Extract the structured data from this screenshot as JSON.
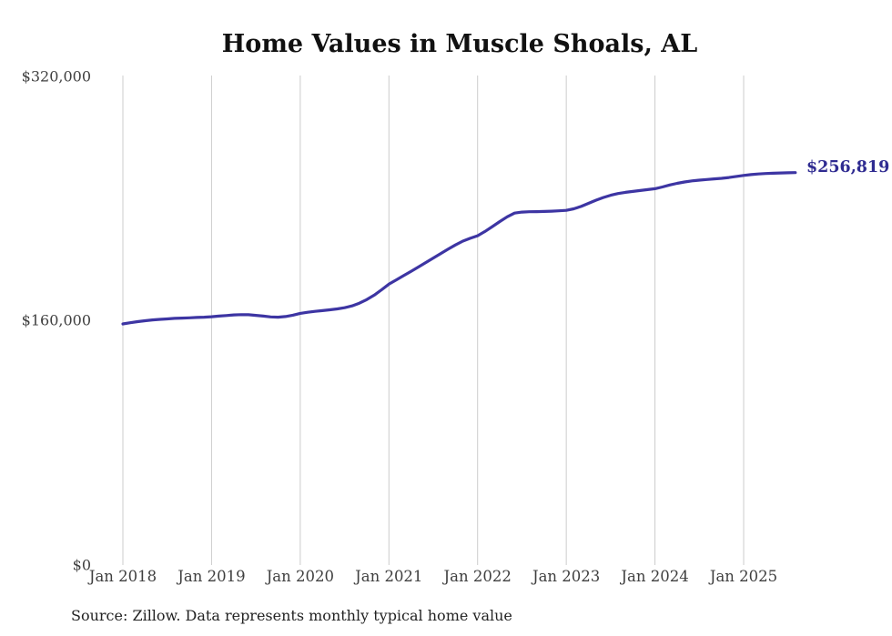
{
  "header": {
    "title": "Home Values in Muscle Shoals, AL"
  },
  "footer": {
    "source_note": "Source: Zillow. Data represents monthly typical home value"
  },
  "colors": {
    "line": "#3d35a3",
    "end_label": "#2f2b91",
    "grid": "#cccccc",
    "axis_text": "#3f3f3f",
    "title_text": "#111111"
  },
  "chart_data": {
    "type": "line",
    "title": "Home Values in Muscle Shoals, AL",
    "frequency": "monthly",
    "x_start": "Jan 2018",
    "x_end": "Aug 2025",
    "x_tick_labels": [
      "Jan 2018",
      "Jan 2019",
      "Jan 2020",
      "Jan 2021",
      "Jan 2022",
      "Jan 2023",
      "Jan 2024",
      "Jan 2025"
    ],
    "y_tick_labels": [
      "$0",
      "$160,000",
      "$320,000"
    ],
    "y_tick_values": [
      0,
      160000,
      320000
    ],
    "ylim": [
      0,
      320000
    ],
    "grid": "vertical-only",
    "legend": "none",
    "end_label": "$256,819",
    "end_value": 256819,
    "series": [
      {
        "name": "Typical home value",
        "values": [
          157800,
          158600,
          159300,
          159900,
          160400,
          160800,
          161100,
          161400,
          161600,
          161800,
          162000,
          162200,
          162500,
          162900,
          163300,
          163700,
          163900,
          163800,
          163400,
          162900,
          162400,
          162200,
          162600,
          163500,
          164700,
          165400,
          166000,
          166500,
          167000,
          167600,
          168400,
          169600,
          171400,
          173700,
          176600,
          180100,
          183800,
          186600,
          189400,
          192200,
          195100,
          198000,
          200900,
          203800,
          206700,
          209500,
          212000,
          213800,
          215500,
          218300,
          221500,
          224800,
          227900,
          230300,
          231000,
          231200,
          231300,
          231400,
          231600,
          231800,
          232100,
          233100,
          234700,
          236700,
          238700,
          240500,
          242000,
          243100,
          243900,
          244500,
          245100,
          245700,
          246300,
          247400,
          248700,
          249800,
          250700,
          251400,
          251900,
          252300,
          252700,
          253100,
          253600,
          254300,
          255000,
          255500,
          255900,
          256200,
          256400,
          256600,
          256700,
          256819
        ]
      }
    ]
  }
}
